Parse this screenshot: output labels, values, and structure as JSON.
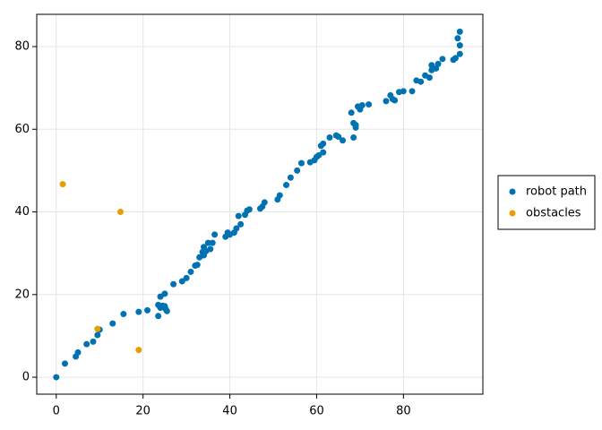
{
  "chart_data": {
    "type": "scatter",
    "series": [
      {
        "name": "robot path",
        "color": "#0072b2",
        "x": [
          0,
          2,
          4.5,
          5,
          7,
          8.5,
          9.5,
          10,
          13,
          15.5,
          19,
          21,
          23.5,
          23.5,
          24,
          24.5,
          24,
          25,
          25,
          25.2,
          25.5,
          27,
          29,
          30,
          31,
          32,
          32.5,
          33,
          34,
          33.7,
          34,
          34.5,
          35,
          35.5,
          36,
          36.5,
          39,
          39.5,
          40,
          41,
          41.5,
          42,
          42.5,
          43.5,
          44,
          44.5,
          47,
          47.5,
          48,
          51,
          51.5,
          53,
          54,
          55.5,
          56.5,
          58.5,
          59.5,
          60,
          60.5,
          61,
          61.5,
          61.5,
          63,
          64.5,
          65,
          66,
          68,
          68.5,
          68.5,
          69,
          69,
          69.5,
          70,
          70.5,
          72,
          76,
          77,
          77.5,
          78,
          79,
          80,
          82,
          83,
          84,
          85,
          86,
          86.5,
          86.5,
          87.5,
          88,
          89,
          91.5,
          92,
          92.5,
          93,
          93,
          93
        ],
        "values": [
          0,
          3.3,
          5,
          6,
          8,
          8.6,
          10.2,
          11.5,
          13,
          15.3,
          15.8,
          16.2,
          14.8,
          17.5,
          16.8,
          17.3,
          19.5,
          20.2,
          17.2,
          16.5,
          16,
          22.5,
          23.2,
          24,
          25.5,
          27,
          27.2,
          29,
          29.5,
          30.3,
          31.5,
          30.5,
          32.5,
          31,
          32.5,
          34.5,
          34,
          35,
          34.5,
          35,
          36,
          39,
          37,
          39.3,
          40.3,
          40.6,
          40.8,
          41.3,
          42.3,
          43,
          44,
          46.5,
          48.3,
          50,
          51.8,
          52,
          52.5,
          53.3,
          53.7,
          56,
          54.4,
          56.5,
          58,
          58.5,
          58.2,
          57.3,
          64,
          61.5,
          58,
          61,
          60.4,
          65.5,
          64.8,
          65.8,
          66,
          66.8,
          68.2,
          67.3,
          67,
          69,
          69.2,
          69.2,
          71.8,
          71.5,
          73,
          72.5,
          75.5,
          74.3,
          74.7,
          75.8,
          77,
          76.8,
          77.2,
          82,
          83.6,
          80.3,
          78.2
        ]
      },
      {
        "name": "obstacles",
        "color": "#e69f00",
        "x": [
          1.5,
          14.8,
          9.5,
          19
        ],
        "values": [
          46.7,
          40,
          11.7,
          6.6
        ]
      }
    ],
    "xlim": [
      -4.5,
      98.3
    ],
    "ylim": [
      -4.1,
      87.8
    ],
    "xticks": [
      0,
      20,
      40,
      60,
      80
    ],
    "yticks": [
      0,
      20,
      40,
      60,
      80
    ],
    "grid": true,
    "legend": "right"
  }
}
